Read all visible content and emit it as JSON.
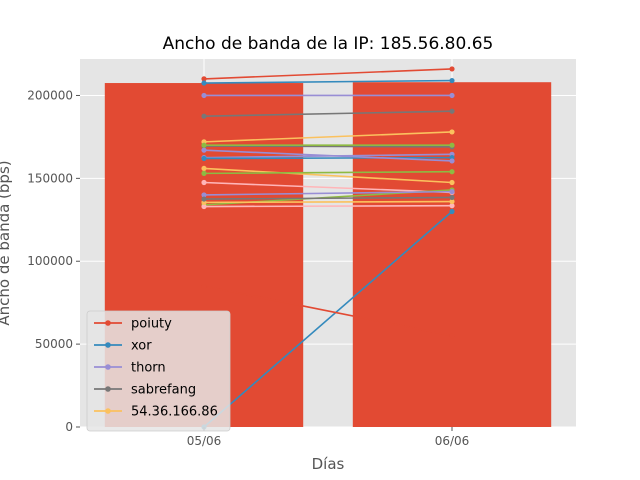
{
  "chart_data": {
    "type": "bar+line",
    "title": "Ancho de banda de la IP: 185.56.80.65",
    "xlabel": "Días",
    "ylabel": "Ancho de banda (bps)",
    "categories": [
      "05/06",
      "06/06"
    ],
    "ylim": [
      0,
      222000
    ],
    "yticks": [
      0,
      50000,
      100000,
      150000,
      200000
    ],
    "ytick_labels": [
      "0",
      "50000",
      "100000",
      "150000",
      "200000"
    ],
    "grid": true,
    "bars": [
      {
        "category": "05/06",
        "value": 207500,
        "color": "#E24A33"
      },
      {
        "category": "06/06",
        "value": 208000,
        "color": "#E24A33"
      }
    ],
    "series": [
      {
        "name": "poiuty",
        "values": [
          210000,
          216000
        ],
        "color": "#E24A33",
        "legend": true
      },
      {
        "name": "xor",
        "values": [
          0,
          130000
        ],
        "color": "#348ABD",
        "legend": true
      },
      {
        "name": "thorn",
        "values": [
          200000,
          200000
        ],
        "color": "#988ED5",
        "legend": true
      },
      {
        "name": "sabrefang",
        "values": [
          187500,
          190500
        ],
        "color": "#777777",
        "legend": true
      },
      {
        "name": "54.36.166.86",
        "values": [
          172000,
          178000
        ],
        "color": "#FBC15E",
        "legend": true
      },
      {
        "values": [
          85000,
          55000
        ],
        "color": "#E24A33",
        "legend": false
      },
      {
        "values": [
          207500,
          209000
        ],
        "color": "#348ABD",
        "legend": false
      },
      {
        "values": [
          162500,
          164500
        ],
        "color": "#988ED5",
        "legend": false
      },
      {
        "values": [
          169500,
          169000
        ],
        "color": "#777777",
        "legend": false
      },
      {
        "values": [
          156000,
          147500
        ],
        "color": "#FBC15E",
        "legend": false
      },
      {
        "values": [
          153000,
          154000
        ],
        "color": "#8EBA42",
        "legend": false
      },
      {
        "values": [
          147500,
          141500
        ],
        "color": "#FFB5B8",
        "legend": false
      },
      {
        "values": [
          134000,
          143000
        ],
        "color": "#8EBA42",
        "legend": false
      },
      {
        "values": [
          133000,
          133500
        ],
        "color": "#FFB5B8",
        "legend": false
      },
      {
        "values": [
          140000,
          142000
        ],
        "color": "#988ED5",
        "legend": false
      },
      {
        "values": [
          162000,
          162500
        ],
        "color": "#348ABD",
        "legend": false
      },
      {
        "values": [
          135500,
          136000
        ],
        "color": "#FBC15E",
        "legend": false
      },
      {
        "values": [
          167000,
          160500
        ],
        "color": "#988ED5",
        "legend": false
      },
      {
        "values": [
          170000,
          170000
        ],
        "color": "#8EBA42",
        "legend": false
      },
      {
        "values": [
          137500,
          138500
        ],
        "color": "#777777",
        "legend": false
      }
    ],
    "legend_position": "lower-left"
  }
}
